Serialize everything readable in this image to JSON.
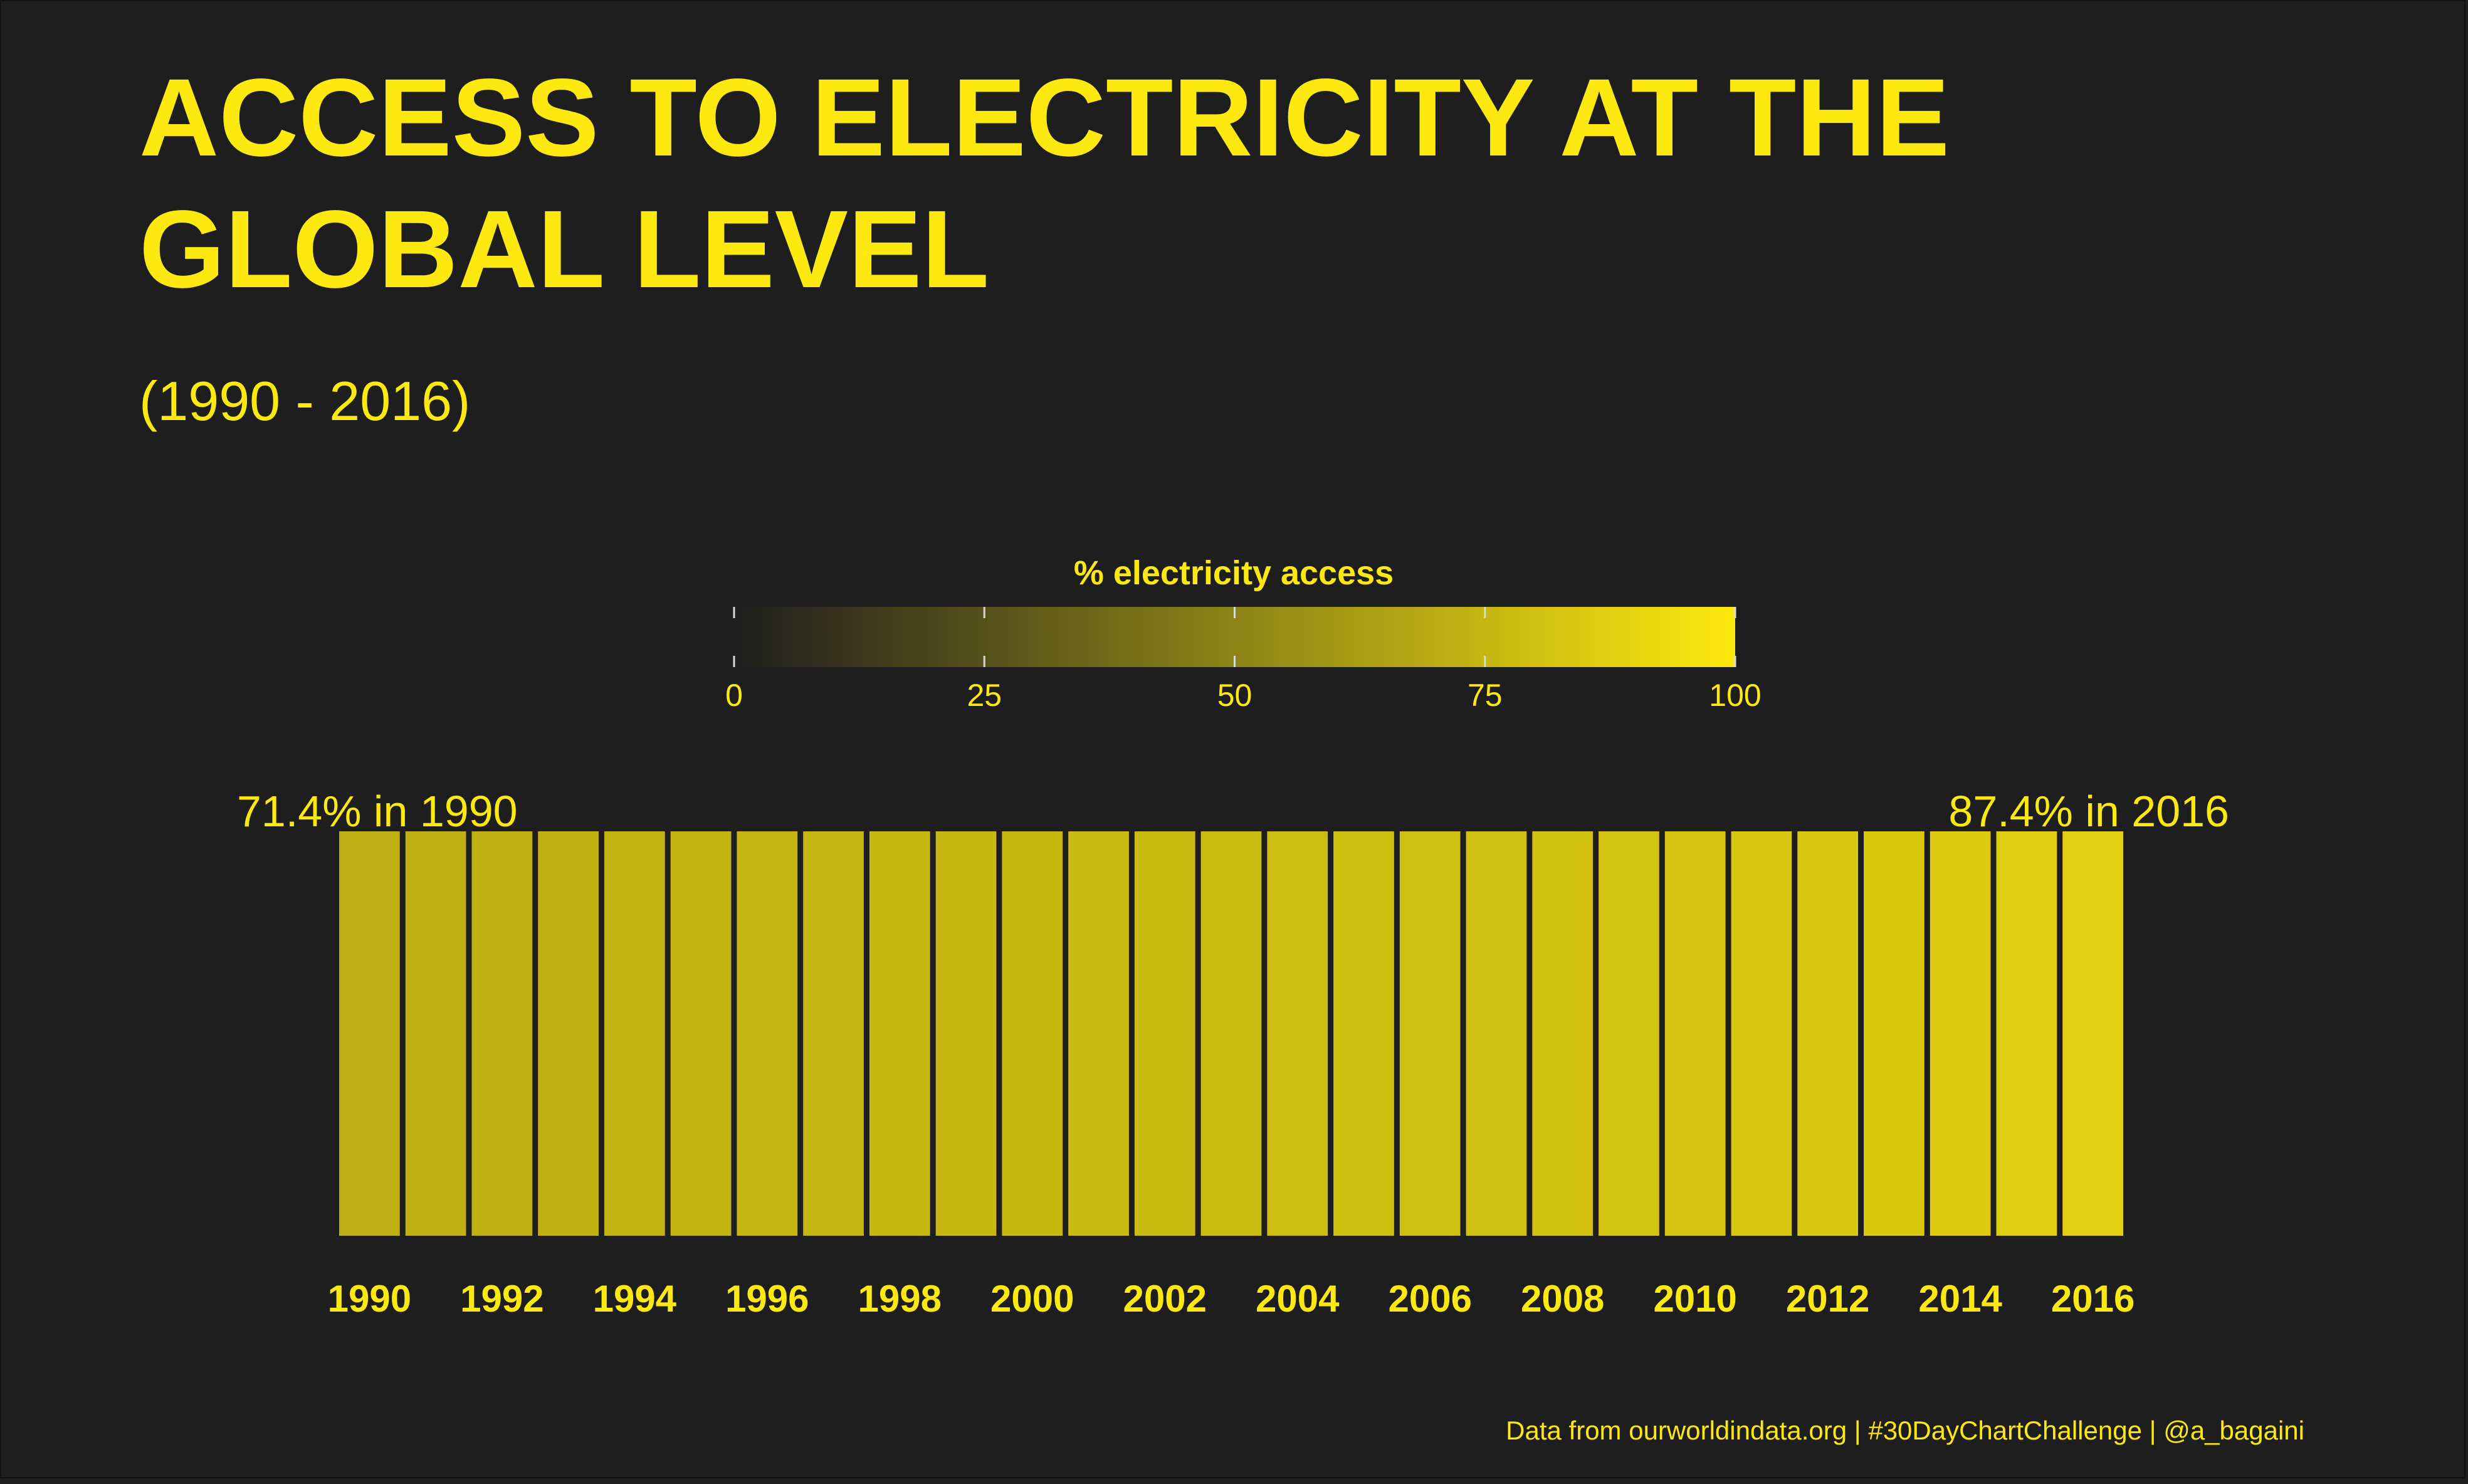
{
  "chart_data": {
    "type": "heatmap",
    "title_lines": [
      "ACCESS TO ELECTRICITY AT THE",
      "GLOBAL LEVEL"
    ],
    "subtitle": "(1990 - 2016)",
    "legend": {
      "title": "% electricity access",
      "min": 0,
      "max": 100,
      "ticks": [
        0,
        25,
        50,
        75,
        100
      ],
      "tick_labels": [
        "0",
        "25",
        "50",
        "75",
        "100"
      ],
      "placement": "top-center",
      "color_low": "#1e1e1e",
      "color_high": "#fde90f"
    },
    "years": [
      1990,
      1991,
      1992,
      1993,
      1994,
      1995,
      1996,
      1997,
      1998,
      1999,
      2000,
      2001,
      2002,
      2003,
      2004,
      2005,
      2006,
      2007,
      2008,
      2009,
      2010,
      2011,
      2012,
      2013,
      2014,
      2015,
      2016
    ],
    "values": [
      71.4,
      72.0,
      72.6,
      73.0,
      73.4,
      73.9,
      74.3,
      74.8,
      75.2,
      75.7,
      76.1,
      76.6,
      77.1,
      77.6,
      78.2,
      78.8,
      79.4,
      80.0,
      80.7,
      81.3,
      82.1,
      82.8,
      83.6,
      84.4,
      85.3,
      86.3,
      87.4
    ],
    "x_tick_labels": [
      "1990",
      "1992",
      "1994",
      "1996",
      "1998",
      "2000",
      "2002",
      "2004",
      "2006",
      "2008",
      "2010",
      "2012",
      "2014",
      "2016"
    ],
    "annotations": {
      "start": "71.4% in 1990",
      "end": "87.4% in 2016"
    },
    "caption": "Data from ourworldindata.org | #30DayChartChallenge | @a_bagaini"
  },
  "colors": {
    "background": "#1e1e1e",
    "accent": "#fde90f"
  }
}
